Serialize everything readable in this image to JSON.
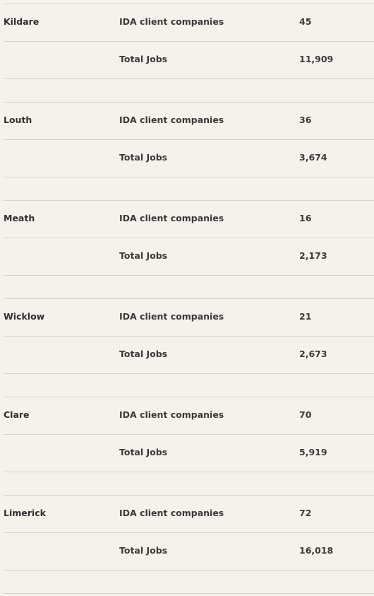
{
  "counties": [
    {
      "name": "Kildare",
      "rows": [
        {
          "label": "IDA client companies",
          "value": "45"
        },
        {
          "label": "Total Jobs",
          "value": "11,909"
        }
      ]
    },
    {
      "name": "Louth",
      "rows": [
        {
          "label": "IDA client companies",
          "value": "36"
        },
        {
          "label": "Total Jobs",
          "value": "3,674"
        }
      ]
    },
    {
      "name": "Meath",
      "rows": [
        {
          "label": "IDA client companies",
          "value": "16"
        },
        {
          "label": "Total Jobs",
          "value": "2,173"
        }
      ]
    },
    {
      "name": "Wicklow",
      "rows": [
        {
          "label": "IDA client companies",
          "value": "21"
        },
        {
          "label": "Total Jobs",
          "value": "2,673"
        }
      ]
    },
    {
      "name": "Clare",
      "rows": [
        {
          "label": "IDA client companies",
          "value": "70"
        },
        {
          "label": "Total Jobs",
          "value": "5,919"
        }
      ]
    },
    {
      "name": "Limerick",
      "rows": [
        {
          "label": "IDA client companies",
          "value": "72"
        },
        {
          "label": "Total Jobs",
          "value": "16,018"
        }
      ]
    }
  ]
}
